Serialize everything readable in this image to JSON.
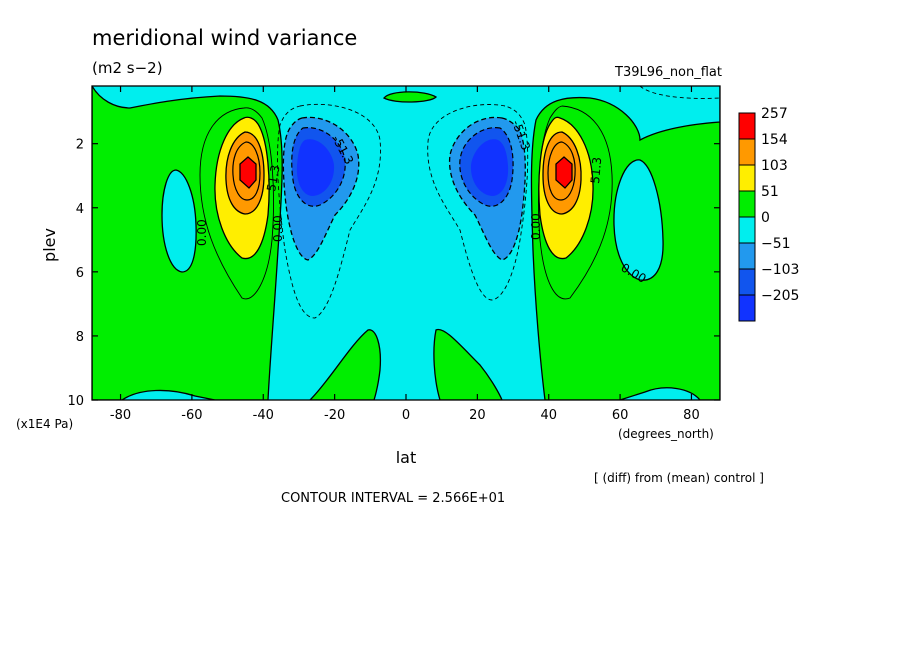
{
  "chart_data": {
    "type": "contour",
    "title": "meridional wind variance",
    "units": "(m2 s−2)",
    "run_label": "T39L96_non_flat",
    "xlabel": "lat",
    "xunits": "(degrees_north)",
    "ylabel": "plev",
    "yunits": "(x1E4 Pa)",
    "xlim": [
      -88,
      88
    ],
    "ylim": [
      10,
      0.2
    ],
    "x_ticks": [
      -80,
      -60,
      -40,
      -20,
      0,
      20,
      40,
      60,
      80
    ],
    "y_ticks": [
      2,
      4,
      6,
      8,
      10
    ],
    "colorbar_levels": [
      257,
      154,
      103,
      51,
      0,
      -51,
      -103,
      -205
    ],
    "colors": {
      "c257": "#ff0000",
      "c154": "#ff9900",
      "c103": "#ffee00",
      "c51": "#00ee00",
      "c0": "#00eeee",
      "cm51": "#2299ee",
      "cm103": "#1155ee",
      "cm205": "#1133ff"
    },
    "contour_labels": [
      "0.00",
      "0.00",
      "-51.3",
      "51.3",
      "-51.3",
      "0.00",
      "51.3",
      "0.00"
    ],
    "contour_interval": 25.66,
    "features": [
      {
        "name": "southern-jet-maximum",
        "lat": -44,
        "plev": 2.8,
        "value": 257
      },
      {
        "name": "southern-minimum",
        "lat": -28,
        "plev": 2.8,
        "value": -205
      },
      {
        "name": "northern-minimum",
        "lat": 28,
        "plev": 2.8,
        "value": -205
      },
      {
        "name": "northern-jet-maximum",
        "lat": 44,
        "plev": 2.8,
        "value": 257
      }
    ],
    "footer_note": "[ (diff) from (mean) control ]",
    "interval_text": "CONTOUR INTERVAL = 2.566E+01"
  }
}
